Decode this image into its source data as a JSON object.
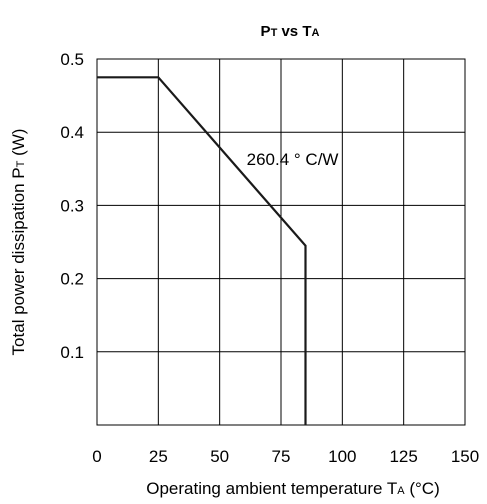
{
  "chart_data": {
    "type": "line",
    "title": {
      "main": "P",
      "main_sub": "T",
      "mid": " vs T",
      "mid_sub": "A"
    },
    "xlabel": {
      "text": "Operating ambient temperature  T",
      "sub": "A",
      "unit": " (°C)"
    },
    "ylabel": {
      "text": "Total power dissipation  P",
      "sub": "T",
      "unit": " (W)"
    },
    "xlim": [
      0,
      150
    ],
    "ylim": [
      0,
      0.5
    ],
    "xticks": [
      0,
      25,
      50,
      75,
      100,
      125,
      150
    ],
    "xtick_labels": [
      "0",
      "25",
      "50",
      "75",
      "100",
      "125",
      "150"
    ],
    "yticks": [
      0.1,
      0.2,
      0.3,
      0.4,
      0.5
    ],
    "ytick_labels": [
      "0.1",
      "0.2",
      "0.3",
      "0.4",
      "0.5"
    ],
    "grid": true,
    "series": [
      {
        "x": [
          0,
          25,
          85,
          85
        ],
        "y": [
          0.475,
          0.475,
          0.245,
          0
        ]
      }
    ],
    "annotations": [
      {
        "text": "260.4 ° C/W",
        "x": 61,
        "y": 0.355
      }
    ],
    "line_color": "#1a1a1a"
  }
}
